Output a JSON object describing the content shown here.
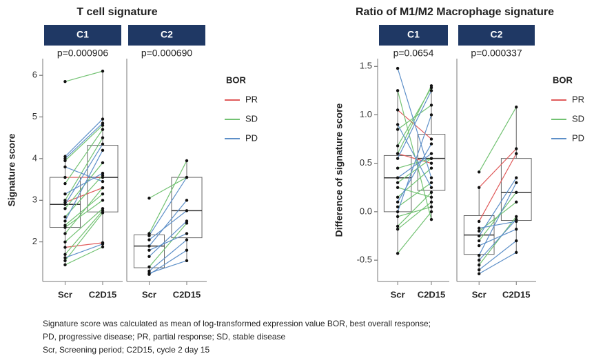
{
  "chart_data": [
    {
      "type": "paired-box",
      "title": "T cell signature",
      "ylabel": "Signature score",
      "ylim": [
        1.05,
        6.4
      ],
      "yticks": [
        2,
        3,
        4,
        5,
        6
      ],
      "categories": [
        "Scr",
        "C2D15"
      ],
      "legend_title": "BOR",
      "series": [
        {
          "name": "PR",
          "color": "#e05a5a"
        },
        {
          "name": "SD",
          "color": "#72c272"
        },
        {
          "name": "PD",
          "color": "#5d8fc8"
        }
      ],
      "panels": [
        {
          "label": "C1",
          "p_value": "p=0.000906",
          "boxes": [
            {
              "low": 1.45,
              "q1": 2.35,
              "median": 2.9,
              "q3": 3.55,
              "high": 4.1
            },
            {
              "low": 1.88,
              "q1": 2.72,
              "median": 3.55,
              "q3": 4.32,
              "high": 6.1
            }
          ],
          "pairs": [
            [
              [
                1.87,
                1.98
              ],
              [
                3.55,
                3.55
              ],
              [
                2.95,
                3.3
              ]
            ],
            [
              [
                1.45,
                1.88
              ],
              [
                1.55,
                2.7
              ],
              [
                2.0,
                2.8
              ],
              [
                2.35,
                3.0
              ],
              [
                2.4,
                3.15
              ],
              [
                2.6,
                3.6
              ],
              [
                2.8,
                3.9
              ],
              [
                3.0,
                4.5
              ],
              [
                3.4,
                4.7
              ],
              [
                3.95,
                4.8
              ],
              [
                5.85,
                6.1
              ],
              [
                2.2,
                3.3
              ],
              [
                1.7,
                2.75
              ]
            ],
            [
              [
                1.62,
                1.95
              ],
              [
                2.9,
                4.35
              ],
              [
                3.15,
                3.65
              ],
              [
                4.05,
                4.95
              ],
              [
                3.8,
                3.45
              ],
              [
                2.5,
                4.2
              ],
              [
                4.0,
                4.85
              ]
            ]
          ]
        },
        {
          "label": "C2",
          "p_value": "p=0.000690",
          "boxes": [
            {
              "low": 1.22,
              "q1": 1.38,
              "median": 1.9,
              "q3": 2.17,
              "high": 2.25
            },
            {
              "low": 1.55,
              "q1": 2.1,
              "median": 2.75,
              "q3": 3.55,
              "high": 3.95
            }
          ],
          "pairs": [
            [],
            [
              [
                3.05,
                3.55
              ],
              [
                2.2,
                3.95
              ],
              [
                1.4,
                2.45
              ]
            ],
            [
              [
                1.25,
                1.55
              ],
              [
                1.3,
                2.05
              ],
              [
                1.65,
                2.5
              ],
              [
                1.9,
                3.0
              ],
              [
                2.05,
                2.75
              ],
              [
                1.8,
                2.2
              ],
              [
                1.22,
                1.8
              ],
              [
                2.15,
                3.55
              ]
            ]
          ]
        }
      ]
    },
    {
      "type": "paired-box",
      "title": "Ratio of M1/M2 Macrophage signature",
      "ylabel": "Difference of signature score",
      "ylim": [
        -0.72,
        1.58
      ],
      "yticks": [
        -0.5,
        {
          "value": 0,
          "label": "0.0"
        },
        0.5,
        {
          "value": 1,
          "label": "1.0"
        },
        1.5
      ],
      "categories": [
        "Scr",
        "C2D15"
      ],
      "legend_title": "BOR",
      "series": [
        {
          "name": "PR",
          "color": "#e05a5a"
        },
        {
          "name": "SD",
          "color": "#72c272"
        },
        {
          "name": "PD",
          "color": "#5d8fc8"
        }
      ],
      "panels": [
        {
          "label": "C1",
          "p_value": "p=0.0654",
          "boxes": [
            {
              "low": -0.43,
              "q1": 0.0,
              "median": 0.35,
              "q3": 0.58,
              "high": 1.25
            },
            {
              "low": -0.08,
              "q1": 0.22,
              "median": 0.55,
              "q3": 0.8,
              "high": 1.3
            }
          ],
          "pairs": [
            [
              [
                1.05,
                0.75
              ],
              [
                0.6,
                0.5
              ]
            ],
            [
              [
                -0.43,
                0.0
              ],
              [
                -0.18,
                0.1
              ],
              [
                -0.05,
                0.05
              ],
              [
                0.05,
                0.3
              ],
              [
                0.15,
                0.45
              ],
              [
                0.3,
                0.55
              ],
              [
                0.45,
                0.55
              ],
              [
                0.6,
                1.3
              ],
              [
                0.68,
                1.28
              ],
              [
                0.85,
                1.1
              ],
              [
                0.25,
                0.15
              ],
              [
                1.25,
                -0.08
              ],
              [
                -0.15,
                0.2
              ]
            ],
            [
              [
                1.48,
                0.35
              ],
              [
                0.0,
                1.0
              ],
              [
                0.35,
                0.6
              ],
              [
                0.9,
                0.25
              ],
              [
                0.55,
                1.25
              ],
              [
                0.1,
                0.7
              ]
            ]
          ]
        },
        {
          "label": "C2",
          "p_value": "p=0.000337",
          "boxes": [
            {
              "low": -0.64,
              "q1": -0.44,
              "median": -0.24,
              "q3": -0.04,
              "high": 0.25
            },
            {
              "low": -0.42,
              "q1": -0.09,
              "median": 0.2,
              "q3": 0.55,
              "high": 1.08
            }
          ],
          "pairs": [
            [
              [
                0.25,
                0.65
              ],
              [
                -0.1,
                0.6
              ]
            ],
            [
              [
                0.41,
                1.08
              ],
              [
                -0.3,
                0.2
              ],
              [
                -0.55,
                -0.05
              ],
              [
                -0.2,
                0.1
              ]
            ],
            [
              [
                -0.64,
                -0.42
              ],
              [
                -0.5,
                -0.08
              ],
              [
                -0.45,
                0.3
              ],
              [
                -0.25,
                0.35
              ],
              [
                -0.35,
                -0.18
              ],
              [
                -0.17,
                -0.1
              ],
              [
                -0.6,
                -0.3
              ]
            ]
          ]
        }
      ]
    }
  ],
  "footnote": [
    "Signature score was calculated as mean of log-transformed expression value BOR, best overall response;",
    "PD, progressive disease; PR, partial response; SD, stable disease",
    "Scr, Screening period; C2D15, cycle 2 day 15"
  ]
}
